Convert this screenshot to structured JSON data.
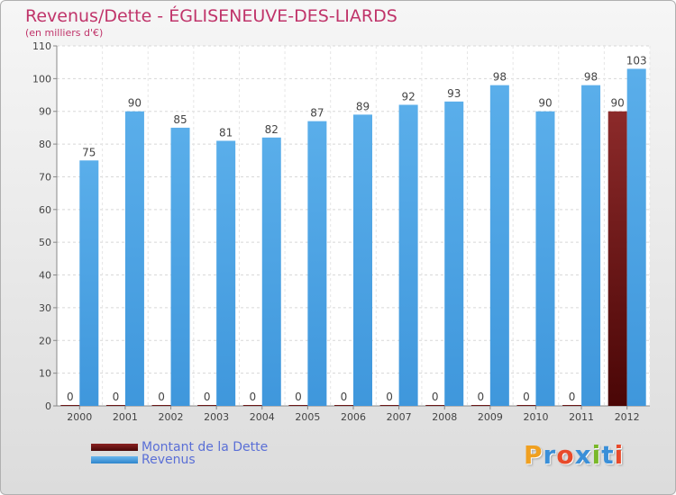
{
  "header": {
    "title": "Revenus/Dette - ÉGLISENEUVE-DES-LIARDS",
    "subtitle": "(en milliers d'€)"
  },
  "chart_data": {
    "type": "bar",
    "categories": [
      "2000",
      "2001",
      "2002",
      "2003",
      "2004",
      "2005",
      "2006",
      "2007",
      "2008",
      "2009",
      "2010",
      "2011",
      "2012"
    ],
    "series": [
      {
        "name": "Montant de la Dette",
        "values": [
          0,
          0,
          0,
          0,
          0,
          0,
          0,
          0,
          0,
          0,
          0,
          0,
          90
        ],
        "color": "#6b1010"
      },
      {
        "name": "Revenus",
        "values": [
          75,
          90,
          85,
          81,
          82,
          87,
          89,
          92,
          93,
          98,
          90,
          98,
          103
        ],
        "color": "#4a9fe0"
      }
    ],
    "yticks": [
      0,
      10,
      20,
      30,
      40,
      50,
      60,
      70,
      80,
      90,
      100,
      110
    ],
    "ylim": [
      0,
      110
    ],
    "grid": true,
    "legend_placement": "bottom-left"
  },
  "legend": {
    "items": [
      {
        "label": "Montant de la Dette",
        "color": "#6b1010"
      },
      {
        "label": "Revenus",
        "color": "#4a9fe0"
      }
    ]
  },
  "logo": {
    "letters": [
      "P",
      "r",
      "o",
      "x",
      "i",
      "t",
      "i"
    ],
    "colors": [
      "#f0a020",
      "#3a8fd8",
      "#e84a2a",
      "#3a8fd8",
      "#7ab82a",
      "#3a8fd8",
      "#e84a2a"
    ]
  }
}
